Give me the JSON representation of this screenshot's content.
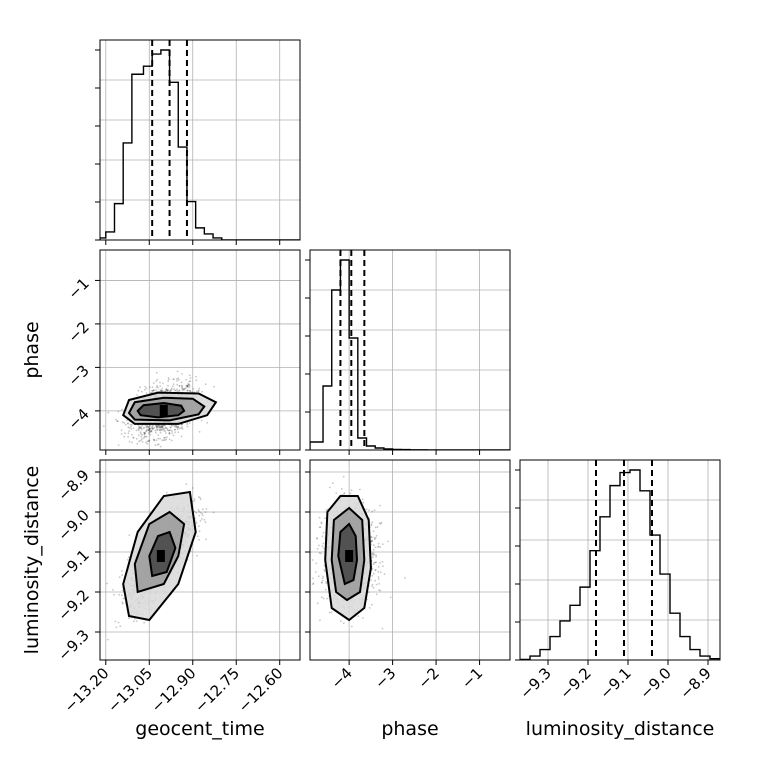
{
  "chart_data": {
    "type": "corner",
    "parameters": [
      "geocent_time",
      "phase",
      "luminosity_distance"
    ],
    "grid": true,
    "ranges": {
      "geocent_time": [
        -13.22,
        -12.53
      ],
      "phase": [
        -4.9,
        -0.3
      ],
      "luminosity_distance": [
        -9.37,
        -8.87
      ]
    },
    "ticks": {
      "geocent_time": [
        -13.2,
        -13.05,
        -12.9,
        -12.75,
        -12.6
      ],
      "phase": [
        -4,
        -3,
        -2,
        -1
      ],
      "luminosity_distance": [
        -9.3,
        -9.2,
        -9.1,
        -9.0,
        -8.9
      ]
    },
    "tick_labels": {
      "geocent_time": [
        "−13.20",
        "−13.05",
        "−12.90",
        "−12.75",
        "−12.60"
      ],
      "phase": [
        "−4",
        "−3",
        "−2",
        "−1"
      ],
      "luminosity_distance": [
        "−9.3",
        "−9.2",
        "−9.1",
        "−9.0",
        "−8.9"
      ]
    },
    "quantiles": {
      "geocent_time": [
        -13.04,
        -12.98,
        -12.92
      ],
      "phase": [
        -4.2,
        -3.95,
        -3.65
      ],
      "luminosity_distance": [
        -9.18,
        -9.11,
        -9.04
      ]
    },
    "histograms": {
      "geocent_time": {
        "edges": [
          -13.22,
          -13.2,
          -13.17,
          -13.14,
          -13.11,
          -13.07,
          -13.04,
          -13.01,
          -12.98,
          -12.95,
          -12.92,
          -12.89,
          -12.86,
          -12.83,
          -12.8,
          -12.77,
          -12.74,
          -12.71,
          -12.68,
          -12.65,
          -12.62,
          -12.58,
          -12.53
        ],
        "counts": [
          0.01,
          0.04,
          0.18,
          0.48,
          0.82,
          0.86,
          0.92,
          0.94,
          0.78,
          0.46,
          0.19,
          0.06,
          0.03,
          0.01,
          0,
          0,
          0,
          0,
          0,
          0,
          0,
          0
        ]
      },
      "phase": {
        "edges": [
          -4.9,
          -4.6,
          -4.4,
          -4.2,
          -4.0,
          -3.8,
          -3.6,
          -3.4,
          -3.2,
          -3.0,
          -2.8,
          -2.6,
          -2.2,
          -0.3
        ],
        "counts": [
          0.04,
          0.32,
          0.8,
          0.95,
          0.56,
          0.06,
          0.02,
          0.01,
          0.005,
          0.003,
          0.002,
          0.001,
          0
        ]
      },
      "luminosity_distance": {
        "edges": [
          -9.37,
          -9.345,
          -9.32,
          -9.295,
          -9.27,
          -9.245,
          -9.22,
          -9.195,
          -9.17,
          -9.145,
          -9.12,
          -9.095,
          -9.07,
          -9.045,
          -9.02,
          -8.995,
          -8.97,
          -8.945,
          -8.92,
          -8.895,
          -8.87
        ],
        "counts": [
          0.002,
          0.015,
          0.04,
          0.09,
          0.15,
          0.21,
          0.28,
          0.42,
          0.55,
          0.67,
          0.72,
          0.73,
          0.65,
          0.48,
          0.33,
          0.18,
          0.09,
          0.04,
          0.015,
          0.005
        ]
      }
    },
    "pairs": [
      {
        "x": "geocent_time",
        "y": "phase",
        "mean": [
          -13.0,
          -4.0
        ],
        "sd": [
          0.055,
          0.3
        ],
        "rho": 0.35,
        "contours": [
          [
            [
              -13.09,
              -4.0
            ],
            [
              -13.07,
              -3.87
            ],
            [
              -13.0,
              -3.82
            ],
            [
              -12.94,
              -3.88
            ],
            [
              -12.93,
              -4.0
            ],
            [
              -12.95,
              -4.1
            ],
            [
              -13.02,
              -4.15
            ],
            [
              -13.08,
              -4.1
            ]
          ],
          [
            [
              -13.12,
              -4.05
            ],
            [
              -13.1,
              -3.8
            ],
            [
              -13.0,
              -3.7
            ],
            [
              -12.9,
              -3.72
            ],
            [
              -12.86,
              -3.9
            ],
            [
              -12.88,
              -4.08
            ],
            [
              -12.98,
              -4.22
            ],
            [
              -13.1,
              -4.2
            ]
          ],
          [
            [
              -13.14,
              -4.1
            ],
            [
              -13.12,
              -3.75
            ],
            [
              -13.02,
              -3.58
            ],
            [
              -12.88,
              -3.6
            ],
            [
              -12.82,
              -3.8
            ],
            [
              -12.85,
              -4.1
            ],
            [
              -12.95,
              -4.3
            ],
            [
              -13.1,
              -4.3
            ]
          ]
        ]
      },
      {
        "x": "geocent_time",
        "y": "luminosity_distance",
        "mean": [
          -13.01,
          -9.11
        ],
        "sd": [
          0.055,
          0.06
        ],
        "rho": 0.75,
        "contours": [
          [
            [
              -13.04,
              -9.16
            ],
            [
              -13.05,
              -9.11
            ],
            [
              -13.02,
              -9.06
            ],
            [
              -12.98,
              -9.05
            ],
            [
              -12.96,
              -9.09
            ],
            [
              -12.99,
              -9.15
            ]
          ],
          [
            [
              -13.09,
              -9.2
            ],
            [
              -13.1,
              -9.13
            ],
            [
              -13.05,
              -9.03
            ],
            [
              -12.98,
              -9.0
            ],
            [
              -12.93,
              -9.03
            ],
            [
              -12.95,
              -9.11
            ],
            [
              -13.0,
              -9.18
            ]
          ],
          [
            [
              -13.12,
              -9.26
            ],
            [
              -13.14,
              -9.18
            ],
            [
              -13.09,
              -9.05
            ],
            [
              -13.0,
              -8.96
            ],
            [
              -12.91,
              -8.95
            ],
            [
              -12.89,
              -9.05
            ],
            [
              -12.95,
              -9.18
            ],
            [
              -13.05,
              -9.27
            ]
          ]
        ]
      },
      {
        "x": "phase",
        "y": "luminosity_distance",
        "mean": [
          -4.0,
          -9.11
        ],
        "sd": [
          0.3,
          0.06
        ],
        "rho": 0.0,
        "contours": [
          [
            [
              -4.25,
              -9.11
            ],
            [
              -4.2,
              -9.05
            ],
            [
              -4.0,
              -9.03
            ],
            [
              -3.85,
              -9.06
            ],
            [
              -3.82,
              -9.12
            ],
            [
              -3.9,
              -9.17
            ],
            [
              -4.1,
              -9.18
            ]
          ],
          [
            [
              -4.4,
              -9.12
            ],
            [
              -4.35,
              -9.02
            ],
            [
              -4.0,
              -8.99
            ],
            [
              -3.7,
              -9.02
            ],
            [
              -3.65,
              -9.12
            ],
            [
              -3.75,
              -9.2
            ],
            [
              -4.05,
              -9.22
            ],
            [
              -4.3,
              -9.2
            ]
          ],
          [
            [
              -4.55,
              -9.12
            ],
            [
              -4.5,
              -9.0
            ],
            [
              -4.2,
              -8.96
            ],
            [
              -3.8,
              -8.96
            ],
            [
              -3.55,
              -9.02
            ],
            [
              -3.5,
              -9.14
            ],
            [
              -3.65,
              -9.24
            ],
            [
              -4.0,
              -9.27
            ],
            [
              -4.4,
              -9.24
            ]
          ]
        ]
      }
    ]
  }
}
